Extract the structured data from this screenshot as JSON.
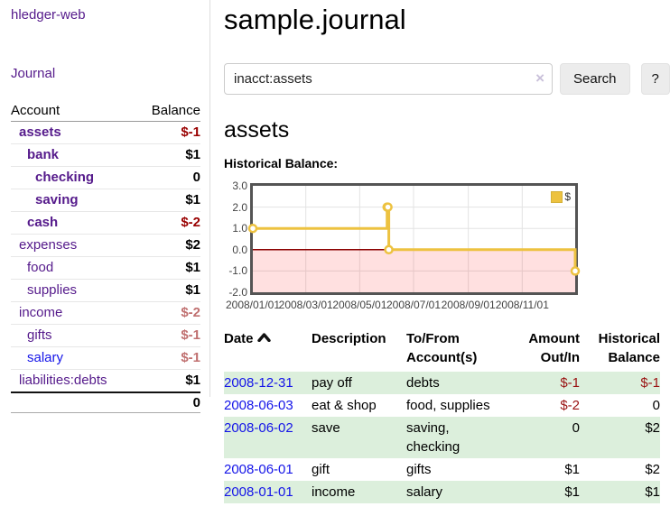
{
  "app": {
    "brand": "hledger-web"
  },
  "sidebar": {
    "journal_link": "Journal",
    "accounts_table": {
      "headers": {
        "account": "Account",
        "balance": "Balance"
      },
      "rows": [
        {
          "name": "assets",
          "indent": 1,
          "bold": true,
          "balance": "$-1",
          "balance_style": "neg-strong"
        },
        {
          "name": "bank",
          "indent": 2,
          "bold": true,
          "balance": "$1",
          "balance_style": "pos"
        },
        {
          "name": "checking",
          "indent": 3,
          "bold": true,
          "balance": "0",
          "balance_style": "pos"
        },
        {
          "name": "saving",
          "indent": 3,
          "bold": true,
          "balance": "$1",
          "balance_style": "pos"
        },
        {
          "name": "cash",
          "indent": 2,
          "bold": true,
          "balance": "$-2",
          "balance_style": "neg-strong"
        },
        {
          "name": "expenses",
          "indent": 1,
          "bold": false,
          "balance": "$2",
          "balance_style": "pos"
        },
        {
          "name": "food",
          "indent": 2,
          "bold": false,
          "balance": "$1",
          "balance_style": "pos"
        },
        {
          "name": "supplies",
          "indent": 2,
          "bold": false,
          "balance": "$1",
          "balance_style": "pos"
        },
        {
          "name": "income",
          "indent": 1,
          "bold": false,
          "balance": "$-2",
          "balance_style": "neg-soft"
        },
        {
          "name": "gifts",
          "indent": 2,
          "bold": false,
          "balance": "$-1",
          "balance_style": "neg-soft"
        },
        {
          "name": "salary",
          "indent": 2,
          "bold": false,
          "link_color": "blue",
          "balance": "$-1",
          "balance_style": "neg-soft"
        },
        {
          "name": "liabilities:debts",
          "indent": 1,
          "bold": false,
          "balance": "$1",
          "balance_style": "pos"
        }
      ],
      "total": "0"
    }
  },
  "header": {
    "title": "sample.journal"
  },
  "search": {
    "query": "inacct:assets",
    "clear_icon": "×",
    "search_button": "Search",
    "help_button": "?"
  },
  "account_page": {
    "heading": "assets",
    "chart_label": "Historical Balance:"
  },
  "chart_data": {
    "type": "line",
    "step": true,
    "title": "Historical Balance",
    "x_range": [
      "2008-01-01",
      "2008-12-31"
    ],
    "ylim": [
      -2,
      3
    ],
    "grid": true,
    "legend_position": "top-right",
    "series": [
      {
        "name": "$",
        "color": "#edc240",
        "points": [
          {
            "date": "2008-01-01",
            "value": 1
          },
          {
            "date": "2008-06-01",
            "value": 2
          },
          {
            "date": "2008-06-02",
            "value": 2
          },
          {
            "date": "2008-06-03",
            "value": 0
          },
          {
            "date": "2008-12-31",
            "value": -1
          }
        ]
      }
    ],
    "y_ticks": [
      {
        "value": 3,
        "label": "3.0"
      },
      {
        "value": 2,
        "label": "2.0"
      },
      {
        "value": 1,
        "label": "1.0"
      },
      {
        "value": 0,
        "label": "0.0"
      },
      {
        "value": -1,
        "label": "-1.0"
      },
      {
        "value": -2,
        "label": "-2.0"
      }
    ],
    "x_ticks": [
      {
        "date": "2008-01-01",
        "label": "2008/01/01"
      },
      {
        "date": "2008-03-01",
        "label": "2008/03/01"
      },
      {
        "date": "2008-05-01",
        "label": "2008/05/01"
      },
      {
        "date": "2008-07-01",
        "label": "2008/07/01"
      },
      {
        "date": "2008-09-01",
        "label": "2008/09/01"
      },
      {
        "date": "2008-11-01",
        "label": "2008/11/01"
      }
    ],
    "colors": {
      "line": "#edc240",
      "negative_fill": "rgba(255,0,0,0.12)",
      "zero_line": "#8b0000",
      "grid": "#e3e3e3",
      "border": "#545454"
    },
    "legend": {
      "label": "$"
    }
  },
  "register_table": {
    "headers": {
      "date": "Date",
      "description": "Description",
      "accounts": "To/From\nAccount(s)",
      "amount": "Amount\nOut/In",
      "balance": "Historical\nBalance"
    },
    "sort": {
      "column": "date",
      "direction": "ascending"
    },
    "rows": [
      {
        "date": "2008-12-31",
        "description": "pay off",
        "accounts": "debts",
        "amount": "$-1",
        "amount_neg": true,
        "balance": "$-1",
        "balance_neg": true
      },
      {
        "date": "2008-06-03",
        "description": "eat & shop",
        "accounts": "food, supplies",
        "amount": "$-2",
        "amount_neg": true,
        "balance": "0",
        "balance_neg": false
      },
      {
        "date": "2008-06-02",
        "description": "save",
        "accounts": "saving,\nchecking",
        "amount": "0",
        "amount_neg": false,
        "balance": "$2",
        "balance_neg": false
      },
      {
        "date": "2008-06-01",
        "description": "gift",
        "accounts": "gifts",
        "amount": "$1",
        "amount_neg": false,
        "balance": "$2",
        "balance_neg": false
      },
      {
        "date": "2008-01-01",
        "description": "income",
        "accounts": "salary",
        "amount": "$1",
        "amount_neg": false,
        "balance": "$1",
        "balance_neg": false
      }
    ]
  }
}
